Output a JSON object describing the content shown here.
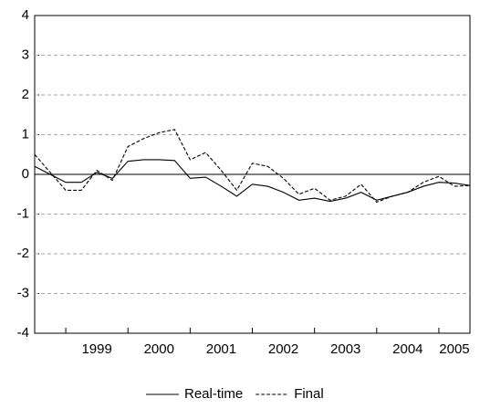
{
  "chart_data": {
    "type": "line",
    "x": [
      1998.5,
      1998.75,
      1999,
      1999.25,
      1999.5,
      1999.75,
      2000,
      2000.25,
      2000.5,
      2000.75,
      2001,
      2001.25,
      2001.5,
      2001.75,
      2002,
      2002.25,
      2002.5,
      2002.75,
      2003,
      2003.25,
      2003.5,
      2003.75,
      2004,
      2004.25,
      2004.5,
      2004.75,
      2005,
      2005.25,
      2005.5
    ],
    "series": [
      {
        "name": "Real-time",
        "color": "#000000",
        "dash": false,
        "values": [
          0.2,
          0.0,
          -0.2,
          -0.2,
          0.05,
          -0.1,
          0.33,
          0.37,
          0.37,
          0.35,
          -0.1,
          -0.07,
          -0.3,
          -0.55,
          -0.25,
          -0.3,
          -0.45,
          -0.65,
          -0.6,
          -0.68,
          -0.6,
          -0.45,
          -0.65,
          -0.55,
          -0.45,
          -0.3,
          -0.2,
          -0.22,
          -0.28
        ]
      },
      {
        "name": "Final",
        "color": "#000000",
        "dash": true,
        "values": [
          0.5,
          0.05,
          -0.4,
          -0.4,
          0.1,
          -0.15,
          0.7,
          0.9,
          1.05,
          1.13,
          0.37,
          0.55,
          0.1,
          -0.4,
          0.28,
          0.2,
          -0.1,
          -0.5,
          -0.35,
          -0.65,
          -0.55,
          -0.25,
          -0.7,
          -0.55,
          -0.45,
          -0.2,
          -0.05,
          -0.3,
          -0.28
        ]
      }
    ],
    "xlim": [
      1998.5,
      2005.5
    ],
    "xticks": [
      {
        "value": 1999.5,
        "label": "1999"
      },
      {
        "value": 2000.5,
        "label": "2000"
      },
      {
        "value": 2001.5,
        "label": "2001"
      },
      {
        "value": 2002.5,
        "label": "2002"
      },
      {
        "value": 2003.5,
        "label": "2003"
      },
      {
        "value": 2004.5,
        "label": "2004"
      },
      {
        "value": 2005.25,
        "label": "2005"
      }
    ],
    "ylim": [
      -4,
      4
    ],
    "yticks": [
      -4,
      -3,
      -2,
      -1,
      0,
      1,
      2,
      3,
      4
    ],
    "grid": true
  }
}
